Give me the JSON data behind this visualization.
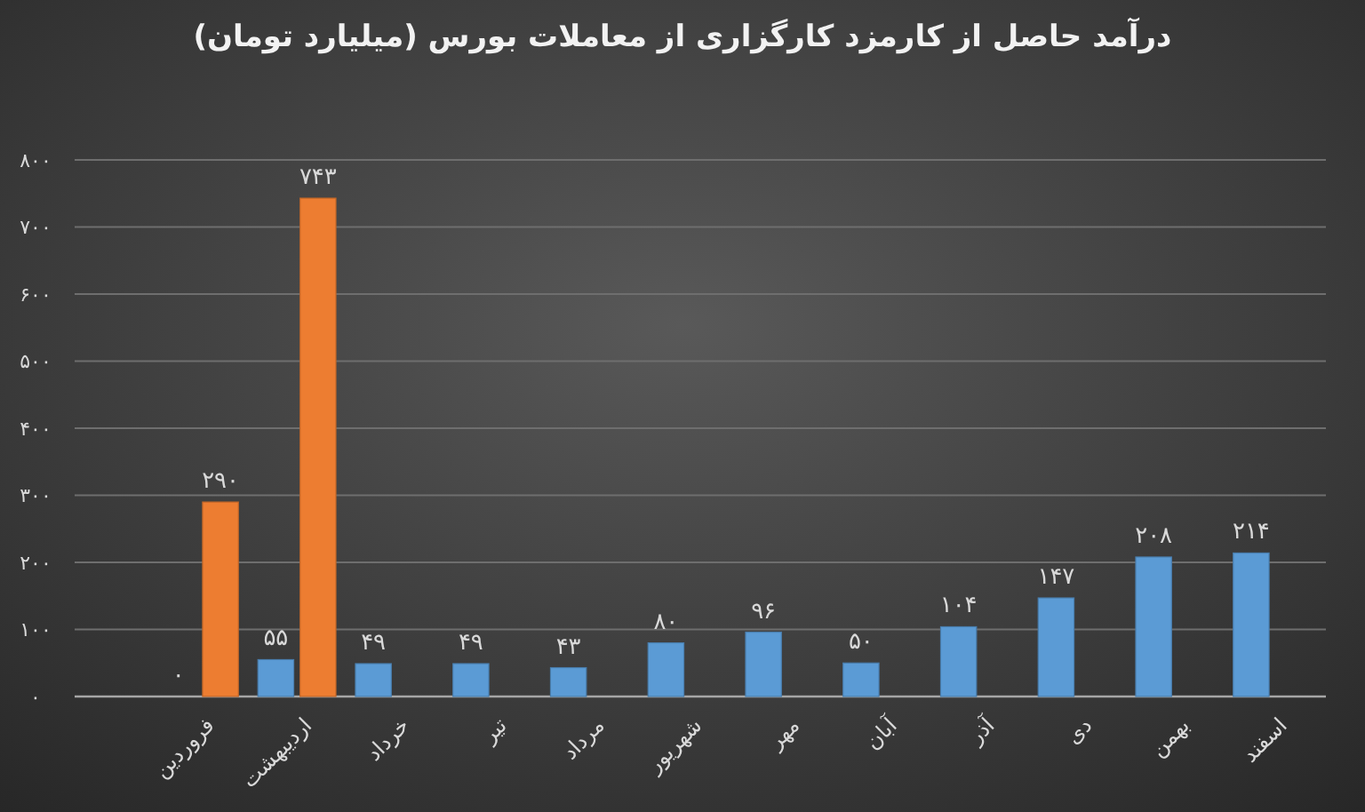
{
  "chart_data": {
    "type": "bar",
    "title": "درآمد حاصل از کارمزد کارگزاری از معاملات بورس (میلیارد تومان)",
    "categories": [
      "فروردین",
      "اردیبهشت",
      "خرداد",
      "تیر",
      "مرداد",
      "شهریور",
      "مهر",
      "آبان",
      "آذر",
      "دی",
      "بهمن",
      "اسفند"
    ],
    "series": [
      {
        "color": "#5b9bd5",
        "values": [
          0,
          55,
          49,
          49,
          43,
          80,
          96,
          50,
          104,
          147,
          208,
          214
        ],
        "value_labels": [
          "۰",
          "۵۵",
          "۴۹",
          "۴۹",
          "۴۳",
          "۸۰",
          "۹۶",
          "۵۰",
          "۱۰۴",
          "۱۴۷",
          "۲۰۸",
          "۲۱۴"
        ]
      },
      {
        "color": "#ed7d31",
        "values": [
          290,
          743,
          null,
          null,
          null,
          null,
          null,
          null,
          null,
          null,
          null,
          null
        ],
        "value_labels": [
          "۲۹۰",
          "۷۴۳",
          null,
          null,
          null,
          null,
          null,
          null,
          null,
          null,
          null,
          null
        ]
      }
    ],
    "ylim": [
      0,
      800
    ],
    "yticks": [
      {
        "value": 0,
        "label": "۰"
      },
      {
        "value": 100,
        "label": "۱۰۰"
      },
      {
        "value": 200,
        "label": "۲۰۰"
      },
      {
        "value": 300,
        "label": "۳۰۰"
      },
      {
        "value": 400,
        "label": "۴۰۰"
      },
      {
        "value": 500,
        "label": "۵۰۰"
      },
      {
        "value": 600,
        "label": "۶۰۰"
      },
      {
        "value": 700,
        "label": "۷۰۰"
      },
      {
        "value": 800,
        "label": "۸۰۰"
      }
    ],
    "grid": "y"
  }
}
